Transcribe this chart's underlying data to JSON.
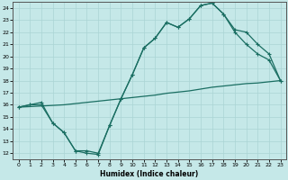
{
  "xlabel": "Humidex (Indice chaleur)",
  "bg_color": "#c5e8e8",
  "grid_color": "#b0d8d8",
  "line_color": "#1a6e62",
  "xlim": [
    -0.5,
    23.5
  ],
  "ylim": [
    11.5,
    24.5
  ],
  "xticks": [
    0,
    1,
    2,
    3,
    4,
    5,
    6,
    7,
    8,
    9,
    10,
    11,
    12,
    13,
    14,
    15,
    16,
    17,
    18,
    19,
    20,
    21,
    22,
    23
  ],
  "yticks": [
    12,
    13,
    14,
    15,
    16,
    17,
    18,
    19,
    20,
    21,
    22,
    23,
    24
  ],
  "line1_x": [
    0,
    1,
    2,
    3,
    4,
    5,
    6,
    7,
    8,
    9,
    10,
    11,
    12,
    13,
    14,
    15,
    16,
    17,
    18,
    19,
    20,
    21,
    22,
    23
  ],
  "line1_y": [
    15.8,
    16.0,
    16.0,
    14.5,
    13.7,
    12.2,
    12.0,
    11.9,
    14.3,
    16.5,
    18.5,
    20.7,
    21.5,
    22.8,
    22.4,
    23.1,
    24.2,
    24.4,
    23.5,
    22.0,
    21.0,
    20.2,
    19.7,
    18.0
  ],
  "line2_x": [
    0,
    1,
    2,
    3,
    4,
    5,
    6,
    7,
    8,
    9,
    10,
    11,
    12,
    13,
    14,
    15,
    16,
    17,
    18,
    19,
    20,
    21,
    22,
    23
  ],
  "line2_y": [
    15.8,
    15.85,
    15.9,
    15.95,
    16.0,
    16.1,
    16.2,
    16.3,
    16.4,
    16.5,
    16.6,
    16.7,
    16.8,
    16.95,
    17.05,
    17.15,
    17.3,
    17.45,
    17.55,
    17.65,
    17.75,
    17.8,
    17.9,
    18.0
  ],
  "line3_x": [
    0,
    1,
    2,
    3,
    4,
    5,
    6,
    7,
    8,
    9,
    10,
    11,
    12,
    13,
    14,
    15,
    16,
    17,
    18,
    19,
    20,
    21,
    22,
    23
  ],
  "line3_y": [
    15.8,
    16.0,
    16.2,
    14.5,
    13.7,
    12.2,
    12.2,
    12.0,
    14.3,
    16.5,
    18.5,
    20.7,
    21.5,
    22.8,
    22.4,
    23.1,
    24.2,
    24.4,
    23.5,
    22.2,
    22.0,
    21.0,
    20.2,
    18.0
  ]
}
